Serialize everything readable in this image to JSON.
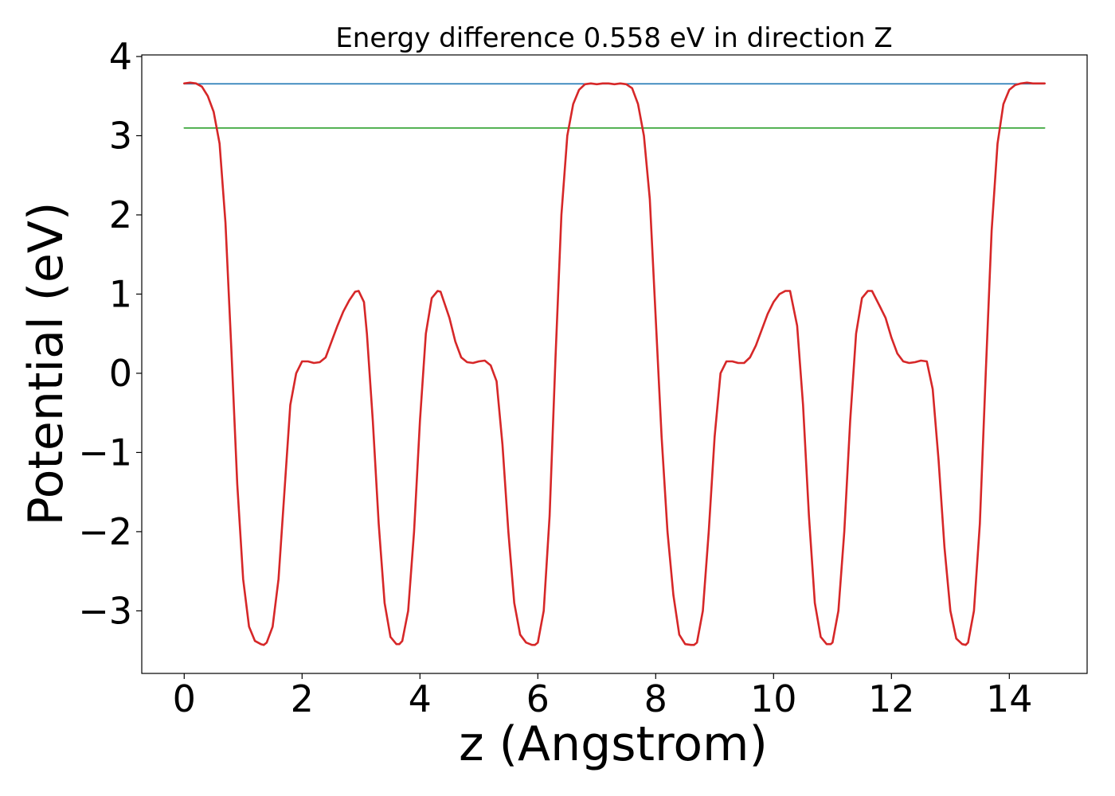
{
  "chart_data": {
    "type": "line",
    "title": "Energy difference 0.558 eV in direction Z",
    "xlabel": "z (Angstrom)",
    "ylabel": "Potential (eV)",
    "xlim": [
      -0.72,
      15.32
    ],
    "ylim": [
      -3.79,
      4.02
    ],
    "xticks": [
      0,
      2,
      4,
      6,
      8,
      10,
      12,
      14
    ],
    "xtick_labels": [
      "0",
      "2",
      "4",
      "6",
      "8",
      "10",
      "12",
      "14"
    ],
    "yticks": [
      -3,
      -2,
      -1,
      0,
      1,
      2,
      3,
      4
    ],
    "ytick_labels": [
      "−3",
      "−2",
      "−1",
      "0",
      "1",
      "2",
      "3",
      "4"
    ],
    "grid": false,
    "legend": "none",
    "series": [
      {
        "color": "#d62728",
        "x": [
          0.0,
          0.1,
          0.2,
          0.3,
          0.4,
          0.5,
          0.6,
          0.7,
          0.8,
          0.9,
          1.0,
          1.1,
          1.2,
          1.3,
          1.35,
          1.4,
          1.5,
          1.6,
          1.7,
          1.8,
          1.9,
          2.0,
          2.1,
          2.2,
          2.3,
          2.4,
          2.5,
          2.6,
          2.7,
          2.8,
          2.9,
          2.96,
          3.05,
          3.1,
          3.2,
          3.3,
          3.4,
          3.5,
          3.6,
          3.65,
          3.7,
          3.8,
          3.9,
          4.0,
          4.1,
          4.2,
          4.3,
          4.35,
          4.5,
          4.6,
          4.7,
          4.8,
          4.9,
          5.0,
          5.1,
          5.2,
          5.3,
          5.4,
          5.5,
          5.6,
          5.7,
          5.8,
          5.9,
          5.95,
          6.0,
          6.1,
          6.2,
          6.3,
          6.4,
          6.5,
          6.6,
          6.7,
          6.8,
          6.9,
          7.0,
          7.1,
          7.2,
          7.3,
          7.4,
          7.5,
          7.6,
          7.7,
          7.8,
          7.9,
          8.0,
          8.1,
          8.2,
          8.3,
          8.4,
          8.5,
          8.6,
          8.65,
          8.7,
          8.8,
          8.9,
          9.0,
          9.1,
          9.2,
          9.3,
          9.4,
          9.5,
          9.6,
          9.7,
          9.8,
          9.9,
          10.0,
          10.1,
          10.2,
          10.28,
          10.4,
          10.5,
          10.6,
          10.7,
          10.8,
          10.9,
          10.97,
          11.0,
          11.1,
          11.2,
          11.3,
          11.4,
          11.5,
          11.6,
          11.67,
          11.8,
          11.9,
          12.0,
          12.1,
          12.2,
          12.3,
          12.4,
          12.5,
          12.6,
          12.7,
          12.8,
          12.9,
          13.0,
          13.1,
          13.2,
          13.26,
          13.3,
          13.4,
          13.5,
          13.6,
          13.7,
          13.8,
          13.9,
          14.0,
          14.1,
          14.2,
          14.3,
          14.4,
          14.5,
          14.6
        ],
        "y": [
          3.66,
          3.67,
          3.66,
          3.62,
          3.5,
          3.3,
          2.9,
          1.9,
          0.3,
          -1.4,
          -2.6,
          -3.2,
          -3.38,
          -3.42,
          -3.43,
          -3.4,
          -3.2,
          -2.6,
          -1.5,
          -0.4,
          0.0,
          0.15,
          0.15,
          0.13,
          0.14,
          0.2,
          0.4,
          0.6,
          0.78,
          0.92,
          1.03,
          1.04,
          0.9,
          0.5,
          -0.6,
          -1.9,
          -2.9,
          -3.33,
          -3.42,
          -3.42,
          -3.38,
          -3.0,
          -2.0,
          -0.6,
          0.5,
          0.95,
          1.04,
          1.03,
          0.7,
          0.4,
          0.2,
          0.14,
          0.13,
          0.15,
          0.16,
          0.1,
          -0.1,
          -0.9,
          -2.0,
          -2.9,
          -3.3,
          -3.4,
          -3.43,
          -3.43,
          -3.4,
          -3.0,
          -1.8,
          0.2,
          2.0,
          3.0,
          3.4,
          3.58,
          3.65,
          3.66,
          3.65,
          3.66,
          3.66,
          3.65,
          3.66,
          3.65,
          3.6,
          3.4,
          3.0,
          2.2,
          0.7,
          -0.8,
          -2.0,
          -2.8,
          -3.3,
          -3.42,
          -3.43,
          -3.43,
          -3.4,
          -3.0,
          -2.0,
          -0.8,
          0.0,
          0.15,
          0.15,
          0.13,
          0.13,
          0.2,
          0.35,
          0.55,
          0.75,
          0.9,
          1.0,
          1.04,
          1.04,
          0.6,
          -0.4,
          -1.8,
          -2.9,
          -3.33,
          -3.42,
          -3.42,
          -3.4,
          -3.0,
          -2.0,
          -0.6,
          0.5,
          0.95,
          1.04,
          1.04,
          0.85,
          0.7,
          0.45,
          0.25,
          0.15,
          0.13,
          0.14,
          0.16,
          0.15,
          -0.2,
          -1.1,
          -2.2,
          -3.0,
          -3.35,
          -3.42,
          -3.43,
          -3.4,
          -3.0,
          -1.9,
          0.0,
          1.8,
          2.9,
          3.4,
          3.58,
          3.64,
          3.66,
          3.67,
          3.66,
          3.66,
          3.66
        ]
      },
      {
        "color": "#1f77b4",
        "x": [
          0.0,
          14.6
        ],
        "y": [
          3.655,
          3.655
        ]
      },
      {
        "color": "#2ca02c",
        "x": [
          0.0,
          14.6
        ],
        "y": [
          3.097,
          3.097
        ]
      }
    ]
  }
}
